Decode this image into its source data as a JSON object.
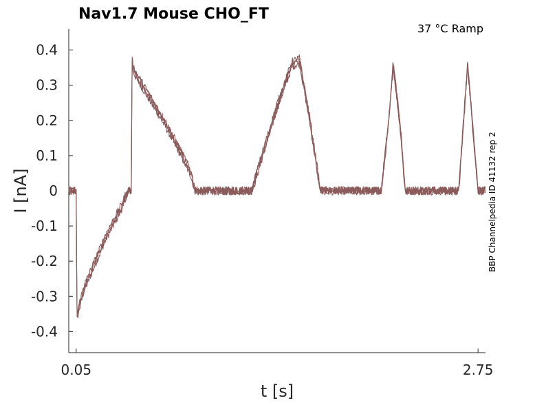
{
  "chart_data": {
    "type": "line",
    "title": "Nav1.7  Mouse  CHO_FT",
    "annotation": "37 °C  Ramp",
    "side_label": "BBP Channelpedia ID 41132 rep 2",
    "xlabel": "t [s]",
    "ylabel": "I [nA]",
    "xlim": [
      0.0,
      2.8
    ],
    "ylim": [
      -0.46,
      0.46
    ],
    "x_ticks": [
      0.05,
      2.75
    ],
    "x_tick_labels": [
      "0.05",
      "2.75"
    ],
    "y_ticks": [
      0.4,
      0.3,
      0.2,
      0.1,
      0,
      -0.1,
      -0.2,
      -0.3,
      -0.4
    ],
    "y_tick_labels": [
      "0.4",
      "0.3",
      "0.2",
      "0.1",
      "0",
      "-0.1",
      "-0.2",
      "-0.3",
      "-0.4"
    ],
    "grid": false,
    "line_color": "#8b5a5a",
    "trace_count": 3,
    "noise_amplitude": 0.012,
    "series": [
      {
        "x": [
          0.0,
          0.04,
          0.045,
          0.05,
          0.055,
          0.07,
          0.1,
          0.15,
          0.2,
          0.25,
          0.3,
          0.35,
          0.4,
          0.42,
          0.425,
          0.43,
          0.45,
          0.55,
          0.65,
          0.75,
          0.82,
          0.85,
          0.9,
          1.0,
          1.1,
          1.2,
          1.23,
          1.3,
          1.4,
          1.5,
          1.55,
          1.62,
          1.69,
          1.72,
          1.75,
          1.85,
          1.95,
          2.0,
          2.1,
          2.15,
          2.18,
          2.23,
          2.26,
          2.3,
          2.4,
          2.5,
          2.55,
          2.62,
          2.65,
          2.68,
          2.75,
          2.8
        ],
        "y": [
          0.0,
          0.0,
          0.0,
          0.0,
          -0.36,
          -0.33,
          -0.28,
          -0.23,
          -0.18,
          -0.13,
          -0.09,
          -0.05,
          0.0,
          0.0,
          0.37,
          0.35,
          0.33,
          0.26,
          0.19,
          0.11,
          0.05,
          0.0,
          0.0,
          0.0,
          0.0,
          0.0,
          0.0,
          0.1,
          0.24,
          0.36,
          0.37,
          0.2,
          0.0,
          0.0,
          0.0,
          0.0,
          0.0,
          0.0,
          0.0,
          0.2,
          0.36,
          0.17,
          0.0,
          0.0,
          0.0,
          0.0,
          0.0,
          0.0,
          0.18,
          0.36,
          0.0,
          0.0
        ]
      }
    ]
  }
}
